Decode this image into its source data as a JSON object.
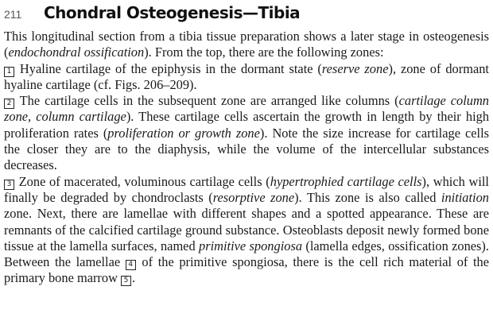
{
  "header": {
    "page_number": "211",
    "title": "Chondral Osteogenesis—Tibia"
  },
  "intro": {
    "t1": "This longitudinal section from a tibia tissue preparation shows a later stage in osteogenesis (",
    "em1": "endochondral ossification",
    "t2": "). From the top, there are the following zones:"
  },
  "zone1": {
    "marker": "1",
    "t1": " Hyaline cartilage of the epiphysis in the dormant state (",
    "em1": "reserve zone",
    "t2": "), zone of dormant hyaline cartilage (cf. Figs. 206–209)."
  },
  "zone2": {
    "marker": "2",
    "t1": " The cartilage cells in the subsequent zone are arranged like columns (",
    "em1": "cartilage column zone, column cartilage",
    "t2": "). These cartilage cells ascertain the growth in length by their high proliferation rates (",
    "em2": "proliferation or growth zone",
    "t3": "). Note the size increase for cartilage cells the closer they are to the diaphysis, while the volume of the intercellular substances decreases."
  },
  "zone3": {
    "marker": "3",
    "t1": " Zone of macerated, voluminous cartilage cells (",
    "em1": "hypertrophied cartilage cells",
    "t2": "), which will finally be degraded by chondroclasts (",
    "em2": "resorptive zone",
    "t3": "). This zone is also called ",
    "em3": "initiation",
    "t4": " zone. Next, there are lamellae with different shapes and a spotted appearance. These are remnants of the calcified cartilage ground substance. Osteoblasts deposit newly formed bone tissue at the lamella surfaces, named ",
    "em4": "primitive spongiosa",
    "t5": " (lamella edges, ossification zones). Between the lamellae ",
    "marker4": "4",
    "t6": " of the primitive spongiosa, there is the cell rich material of the primary bone marrow ",
    "marker5": "5",
    "t7": "."
  }
}
